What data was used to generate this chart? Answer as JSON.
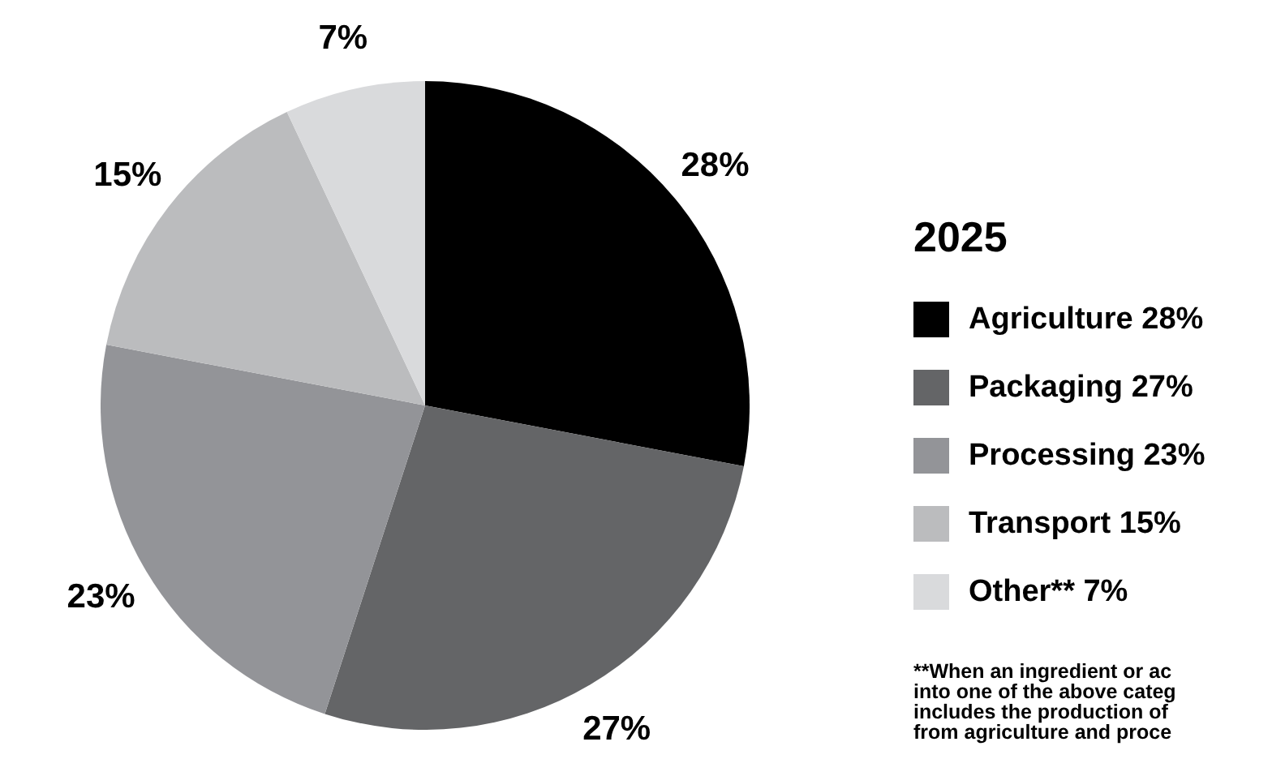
{
  "chart_data": {
    "type": "pie",
    "title": "2025",
    "categories": [
      "Agriculture 28%",
      "Packaging 27%",
      "Processing 23%",
      "Transport 15%",
      "Other** 7%"
    ],
    "values": [
      28,
      27,
      23,
      15,
      7
    ],
    "value_labels": [
      "28%",
      "27%",
      "23%",
      "15%",
      "7%"
    ],
    "colors": [
      "#000000",
      "#646567",
      "#939498",
      "#bbbcbe",
      "#d9dadc"
    ],
    "legend": "right",
    "annotations": [
      "**When an ingredient or ac",
      "into one of the above categ",
      "includes the production of",
      "from agriculture and proce"
    ]
  }
}
